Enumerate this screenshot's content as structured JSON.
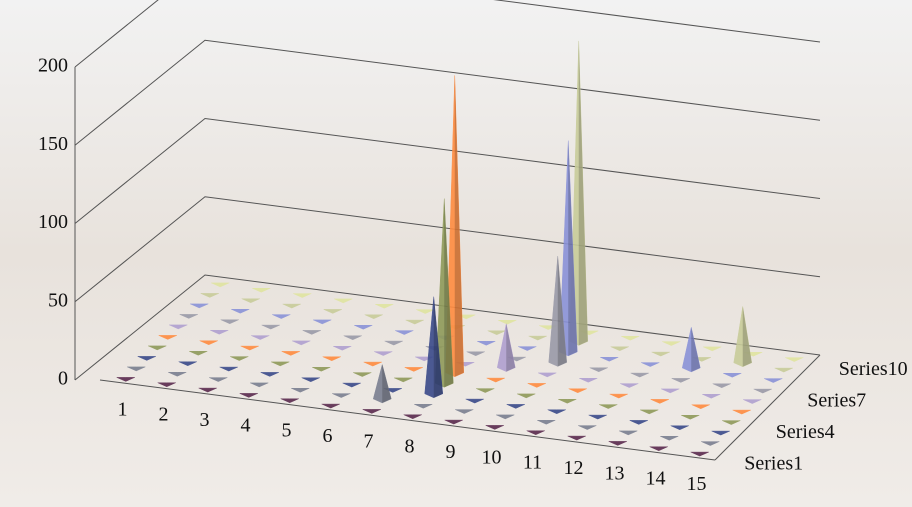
{
  "chart_data": {
    "type": "bar3d-pyramid",
    "categories": [
      "1",
      "2",
      "3",
      "4",
      "5",
      "6",
      "7",
      "8",
      "9",
      "10",
      "11",
      "12",
      "13",
      "14",
      "15"
    ],
    "series": [
      {
        "name": "Series1",
        "color": "#5a2a4e",
        "values": [
          0,
          0,
          0,
          0,
          0,
          0,
          0,
          0,
          0,
          0,
          0,
          0,
          0,
          0,
          0
        ]
      },
      {
        "name": null,
        "color": "#7a7f90",
        "values": [
          0,
          0,
          0,
          0,
          0,
          0,
          22,
          0,
          0,
          0,
          0,
          0,
          0,
          0,
          0
        ]
      },
      {
        "name": null,
        "color": "#3a4a8a",
        "values": [
          0,
          0,
          0,
          0,
          0,
          0,
          0,
          62,
          0,
          0,
          0,
          0,
          0,
          0,
          0
        ]
      },
      {
        "name": "Series4",
        "color": "#8f9a5a",
        "values": [
          0,
          0,
          0,
          0,
          0,
          0,
          0,
          118,
          0,
          0,
          0,
          0,
          0,
          0,
          0
        ]
      },
      {
        "name": null,
        "color": "#ff8c40",
        "values": [
          0,
          0,
          0,
          0,
          0,
          0,
          0,
          190,
          0,
          0,
          0,
          0,
          0,
          0,
          0
        ]
      },
      {
        "name": null,
        "color": "#b0a0d0",
        "values": [
          0,
          0,
          0,
          0,
          0,
          0,
          0,
          0,
          28,
          0,
          0,
          0,
          0,
          0,
          0
        ]
      },
      {
        "name": "Series7",
        "color": "#9a9aa8",
        "values": [
          0,
          0,
          0,
          0,
          0,
          0,
          0,
          0,
          0,
          68,
          0,
          0,
          0,
          0,
          0
        ]
      },
      {
        "name": null,
        "color": "#8a92d8",
        "values": [
          0,
          0,
          0,
          0,
          0,
          0,
          0,
          0,
          0,
          135,
          0,
          0,
          26,
          0,
          0
        ]
      },
      {
        "name": null,
        "color": "#c8cc9a",
        "values": [
          0,
          0,
          0,
          0,
          0,
          0,
          0,
          0,
          0,
          192,
          0,
          0,
          0,
          36,
          0
        ]
      },
      {
        "name": "Series10",
        "color": "#e0e4a0",
        "values": [
          0,
          0,
          0,
          0,
          0,
          0,
          0,
          0,
          0,
          0,
          0,
          0,
          0,
          0,
          0
        ]
      }
    ],
    "ylim": [
      0,
      200
    ],
    "yticks": [
      0,
      50,
      100,
      150,
      200
    ],
    "grid": true
  }
}
